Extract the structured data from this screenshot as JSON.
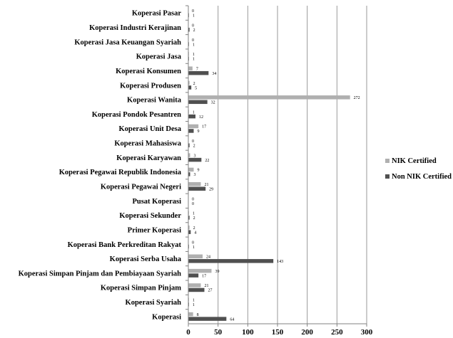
{
  "chart_data": {
    "type": "bar",
    "orientation": "horizontal",
    "categories": [
      "Koperasi Pasar",
      "Koperasi Industri Kerajinan",
      "Koperasi Jasa Keuangan Syariah",
      "Koperasi Jasa",
      "Koperasi Konsumen",
      "Koperasi Produsen",
      "Koperasi Wanita",
      "Koperasi Pondok Pesantren",
      "Koperasi Unit Desa",
      "Koperasi Mahasiswa",
      "Koperasi Karyawan",
      "Koperasi Pegawai Republik Indonesia",
      "Koperasi Pegawai Negeri",
      "Pusat Koperasi",
      "Koperasi Sekunder",
      "Primer Koperasi",
      "Koperasi Bank Perkreditan Rakyat",
      "Koperasi Serba Usaha",
      "Koperasi Simpan Pinjam dan Pembiayaan Syariah",
      "Koperasi Simpan Pinjam",
      "Koperasi Syariah",
      "Koperasi"
    ],
    "series": [
      {
        "name": "NIK Certified",
        "color": "#b0b0b0",
        "values": [
          0,
          0,
          0,
          1,
          7,
          2,
          272,
          1,
          17,
          0,
          3,
          9,
          21,
          0,
          1,
          2,
          0,
          24,
          39,
          21,
          1,
          8
        ]
      },
      {
        "name": "Non NIK Certified",
        "color": "#505050",
        "values": [
          1,
          2,
          1,
          1,
          34,
          5,
          32,
          12,
          9,
          2,
          22,
          3,
          29,
          0,
          2,
          4,
          1,
          143,
          17,
          27,
          1,
          64
        ]
      }
    ],
    "xlim": [
      0,
      300
    ],
    "xticks": [
      "0",
      "50",
      "100",
      "150",
      "200",
      "250",
      "300"
    ],
    "grid": true,
    "legend_position": "right",
    "title": "",
    "xlabel": "",
    "ylabel": ""
  }
}
